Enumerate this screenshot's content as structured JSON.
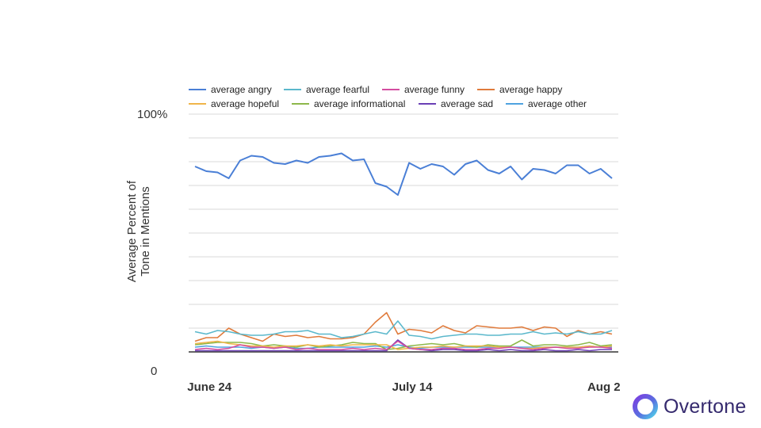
{
  "chart_data": {
    "type": "line",
    "ylabel_line1": "Average Percent of",
    "ylabel_line2": "Tone in Mentions",
    "y_ticks": [
      "100%",
      "0"
    ],
    "x_ticks": [
      {
        "label": "June 24",
        "index": 1
      },
      {
        "label": "July 14",
        "index": 19
      },
      {
        "label": "Aug 2",
        "index": 36
      }
    ],
    "ylim": [
      0,
      100
    ],
    "grid": true,
    "legend_position": "top",
    "legend_rows": [
      [
        "average angry",
        "average fearful",
        "average funny",
        "average happy"
      ],
      [
        "average hopeful",
        "average informational",
        "average sad",
        "average other"
      ]
    ],
    "series": [
      {
        "name": "average angry",
        "color": "#4a7fd6",
        "values": [
          78,
          76,
          75.5,
          73,
          80.5,
          82.5,
          82,
          79.5,
          79,
          80.5,
          79.5,
          82,
          82.5,
          83.5,
          80.5,
          81,
          71,
          69.5,
          66,
          79.5,
          77,
          79,
          78,
          74.5,
          79,
          80.5,
          76.5,
          75,
          78,
          72.5,
          77,
          76.5,
          75,
          78.5,
          78.5,
          75,
          77,
          73
        ]
      },
      {
        "name": "average fearful",
        "color": "#5bb8cc",
        "values": [
          8.5,
          7.5,
          9,
          8.5,
          7.5,
          7,
          7,
          7.5,
          8.5,
          8.5,
          9,
          7.5,
          7.5,
          6,
          6.5,
          7.5,
          8.5,
          7.5,
          13,
          7,
          6.5,
          5.5,
          6.5,
          7,
          7.5,
          7.5,
          7,
          7,
          7.5,
          7.5,
          8.5,
          7.5,
          8,
          7.5,
          8.5,
          7.5,
          7.5,
          9
        ]
      },
      {
        "name": "average funny",
        "color": "#d44da0",
        "values": [
          1,
          1.5,
          1,
          1.5,
          3,
          2,
          2,
          1.5,
          2,
          1,
          1.5,
          1,
          1,
          1,
          1.5,
          1,
          1.5,
          1,
          4.5,
          1.5,
          1,
          1,
          1.5,
          1.5,
          1,
          1,
          1.5,
          1.5,
          2,
          1.5,
          1,
          1.5,
          2,
          1.5,
          1.5,
          2,
          2,
          1.5
        ]
      },
      {
        "name": "average happy",
        "color": "#e07b3c",
        "values": [
          4.5,
          6,
          6,
          10,
          7.5,
          6,
          4.5,
          7.5,
          6.5,
          7,
          6,
          6.5,
          5.5,
          5.5,
          6,
          7.5,
          12.5,
          16.5,
          7.5,
          9.5,
          9,
          8,
          11,
          9,
          8,
          11,
          10.5,
          10,
          10,
          10.5,
          9,
          10.5,
          10,
          6.5,
          9,
          7.5,
          8.5,
          7.5
        ]
      },
      {
        "name": "average hopeful",
        "color": "#f0b54a",
        "values": [
          3.5,
          4,
          4.5,
          3.5,
          3,
          2.5,
          2.5,
          2,
          2.5,
          2.5,
          3,
          2.5,
          3,
          2.5,
          3,
          3,
          3,
          3,
          1,
          1.5,
          2,
          2,
          2.5,
          2,
          2.5,
          2.5,
          2.5,
          2,
          2,
          1.5,
          1.5,
          2,
          2,
          2,
          2,
          2.5,
          2,
          2.5
        ]
      },
      {
        "name": "average informational",
        "color": "#8db84a",
        "values": [
          3,
          3.5,
          4,
          4,
          4,
          3.5,
          2.5,
          3,
          2.5,
          2,
          3,
          2,
          2.5,
          3,
          4,
          3.5,
          3.5,
          1,
          1.5,
          2.5,
          3,
          3.5,
          3,
          3.5,
          2.5,
          2,
          3,
          2.5,
          2.5,
          5,
          2.5,
          3,
          3,
          2.5,
          3,
          4,
          2.5,
          3
        ]
      },
      {
        "name": "average sad",
        "color": "#6a3fb5",
        "values": [
          0.5,
          0.5,
          0.5,
          0.5,
          0.5,
          0.5,
          0.5,
          0.5,
          0.5,
          0.5,
          0.5,
          0.5,
          0.5,
          0.5,
          0.5,
          0.5,
          0.5,
          0.5,
          5,
          1.5,
          1,
          0.5,
          1,
          1,
          0.5,
          0.5,
          1,
          0.5,
          1,
          0.5,
          0.5,
          1,
          0.5,
          0.5,
          1,
          0.5,
          1,
          1
        ]
      },
      {
        "name": "average other",
        "color": "#4fa3e0",
        "values": [
          2,
          2.5,
          2,
          2,
          2,
          1.5,
          2,
          1.5,
          2,
          1.5,
          1.5,
          2,
          2,
          2,
          2,
          2,
          2.5,
          2,
          3,
          2,
          1.5,
          2,
          2,
          2,
          2,
          2,
          2,
          2,
          2,
          2,
          2,
          2,
          2,
          2,
          2,
          2.5,
          2,
          2
        ]
      }
    ]
  },
  "brand": {
    "name": "Overtone"
  }
}
